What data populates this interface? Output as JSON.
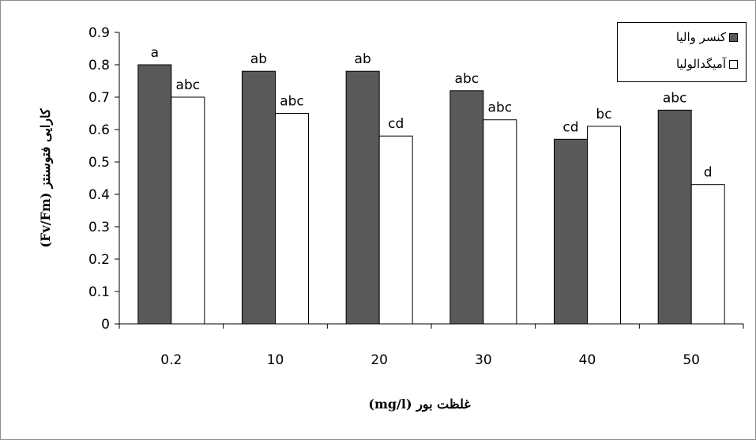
{
  "chart_data": {
    "type": "bar",
    "categories": [
      "0.2",
      "10",
      "20",
      "30",
      "40",
      "50"
    ],
    "series": [
      {
        "name": "کنسر والیا",
        "values": [
          0.8,
          0.78,
          0.78,
          0.72,
          0.57,
          0.66
        ],
        "labels": [
          "a",
          "ab",
          "ab",
          "abc",
          "cd",
          "abc"
        ],
        "color": "#595959"
      },
      {
        "name": "آمیگدالولیا",
        "values": [
          0.7,
          0.65,
          0.58,
          0.63,
          0.61,
          0.43
        ],
        "labels": [
          "abc",
          "abc",
          "cd",
          "abc",
          "bc",
          "d"
        ],
        "color": "#ffffff"
      }
    ],
    "yticks": [
      "0",
      "0.1",
      "0.2",
      "0.3",
      "0.4",
      "0.5",
      "0.6",
      "0.7",
      "0.8",
      "0.9"
    ],
    "ylim": [
      0,
      0.9
    ],
    "ylabel": "کارایی فتوسنتز (Fv/Fm)",
    "xlabel": "غلظت بور (mg/l)",
    "grid": false,
    "legend_position": "top-right"
  }
}
